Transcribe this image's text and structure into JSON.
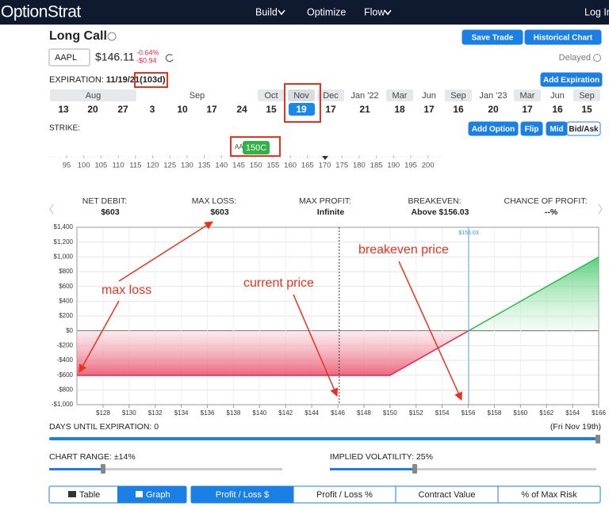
{
  "header": {
    "logo": "OptionStrat",
    "nav": [
      "Build",
      "Optimize",
      "Flow"
    ],
    "login": "Log In"
  },
  "strategy": {
    "title": "Long Call",
    "buttons": [
      "Save Trade",
      "Historical Chart"
    ],
    "ticker": "AAPL",
    "price": "$146.11",
    "change_pct": "-0.64%",
    "change_abs": "-$0.94",
    "status": "Delayed"
  },
  "expiration": {
    "label": "EXPIRATION:",
    "date": "11/19/21",
    "days": "(103d)",
    "button": "Add Expiration",
    "months": [
      {
        "name": "Aug",
        "days": [
          "13",
          "20",
          "27"
        ]
      },
      {
        "name": "Sep",
        "days": [
          "3",
          "10",
          "17",
          "24"
        ]
      },
      {
        "name": "Oct",
        "days": [
          "15"
        ]
      },
      {
        "name": "Nov",
        "days": [
          "19"
        ]
      },
      {
        "name": "Dec",
        "days": [
          "17"
        ]
      },
      {
        "name": "Jan '22",
        "days": [
          "21"
        ]
      },
      {
        "name": "Mar",
        "days": [
          "18"
        ]
      },
      {
        "name": "Jun",
        "days": [
          "17"
        ]
      },
      {
        "name": "Sep",
        "days": [
          "16"
        ]
      },
      {
        "name": "Jan '23",
        "days": [
          "20"
        ]
      },
      {
        "name": "Mar",
        "days": [
          "17"
        ]
      },
      {
        "name": "Jun",
        "days": [
          "16"
        ]
      },
      {
        "name": "Sep",
        "days": [
          "15"
        ]
      }
    ]
  },
  "strike": {
    "label": "STRIKE:",
    "buttons": [
      "Add Option",
      "Flip"
    ],
    "price_modes": [
      "Mid",
      "Bid/Ask"
    ],
    "ghost": "AA",
    "leg": "150C",
    "strikes": [
      "95",
      "100",
      "105",
      "110",
      "115",
      "120",
      "125",
      "130",
      "135",
      "140",
      "145",
      "150",
      "155",
      "160",
      "165",
      "170",
      "175",
      "180",
      "185",
      "190",
      "195",
      "200"
    ]
  },
  "stats": [
    {
      "label": "NET DEBIT:",
      "value": "$603"
    },
    {
      "label": "MAX LOSS:",
      "value": "$603"
    },
    {
      "label": "MAX PROFIT:",
      "value": "Infinite"
    },
    {
      "label": "BREAKEVEN:",
      "value": "Above $156.03"
    },
    {
      "label": "CHANCE OF PROFIT:",
      "value": "--%"
    }
  ],
  "chart_data": {
    "type": "line",
    "x": [
      126,
      150,
      166
    ],
    "series": [
      {
        "values": [
          -603,
          -603,
          997
        ],
        "loss_color": "#e0284a",
        "profit_color": "#2eb84b"
      }
    ],
    "xlim": [
      126,
      166
    ],
    "ylim": [
      -1000,
      1400
    ],
    "xticks": [
      {
        "value": 128,
        "label": "$128"
      },
      {
        "value": 130,
        "label": "$130"
      },
      {
        "value": 132,
        "label": "$132"
      },
      {
        "value": 134,
        "label": "$134"
      },
      {
        "value": 136,
        "label": "$136"
      },
      {
        "value": 138,
        "label": "$138"
      },
      {
        "value": 140,
        "label": "$140"
      },
      {
        "value": 142,
        "label": "$142"
      },
      {
        "value": 144,
        "label": "$144"
      },
      {
        "value": 146,
        "label": "$146"
      },
      {
        "value": 148,
        "label": "$148"
      },
      {
        "value": 150,
        "label": "$150"
      },
      {
        "value": 152,
        "label": "$152"
      },
      {
        "value": 154,
        "label": "$154"
      },
      {
        "value": 156,
        "label": "$156"
      },
      {
        "value": 158,
        "label": "$158"
      },
      {
        "value": 160,
        "label": "$160"
      },
      {
        "value": 162,
        "label": "$162"
      },
      {
        "value": 164,
        "label": "$164"
      },
      {
        "value": 166,
        "label": "$166"
      }
    ],
    "yticks": [
      {
        "value": 1400,
        "label": "$1,400"
      },
      {
        "value": 1200,
        "label": "$1,200"
      },
      {
        "value": 1000,
        "label": "$1,000"
      },
      {
        "value": 800,
        "label": "$800"
      },
      {
        "value": 600,
        "label": "$600"
      },
      {
        "value": 400,
        "label": "$400"
      },
      {
        "value": 200,
        "label": "$200"
      },
      {
        "value": 0,
        "label": "$0"
      },
      {
        "value": -200,
        "label": "-$200"
      },
      {
        "value": -400,
        "label": "-$400"
      },
      {
        "value": -600,
        "label": "-$600"
      },
      {
        "value": -800,
        "label": "-$800"
      },
      {
        "value": -1000,
        "label": "-$1,000"
      }
    ],
    "grid": true,
    "markers": [
      {
        "value": 146.11
      },
      {
        "value": 156.03,
        "label": "$156.03"
      }
    ],
    "annotations": [
      "max loss",
      "current price",
      "breakeven price"
    ]
  },
  "controls": {
    "days": "DAYS UNTIL EXPIRATION: 0",
    "expiry_day": "(Fri Nov 19th)",
    "range": "CHART RANGE: ±14%",
    "iv": "IMPLIED VOLATILITY: 25%"
  },
  "tabs": {
    "view": [
      "Table",
      "Graph"
    ],
    "metric": [
      "Profit / Loss $",
      "Profit / Loss %",
      "Contract Value",
      "% of Max Risk"
    ]
  }
}
